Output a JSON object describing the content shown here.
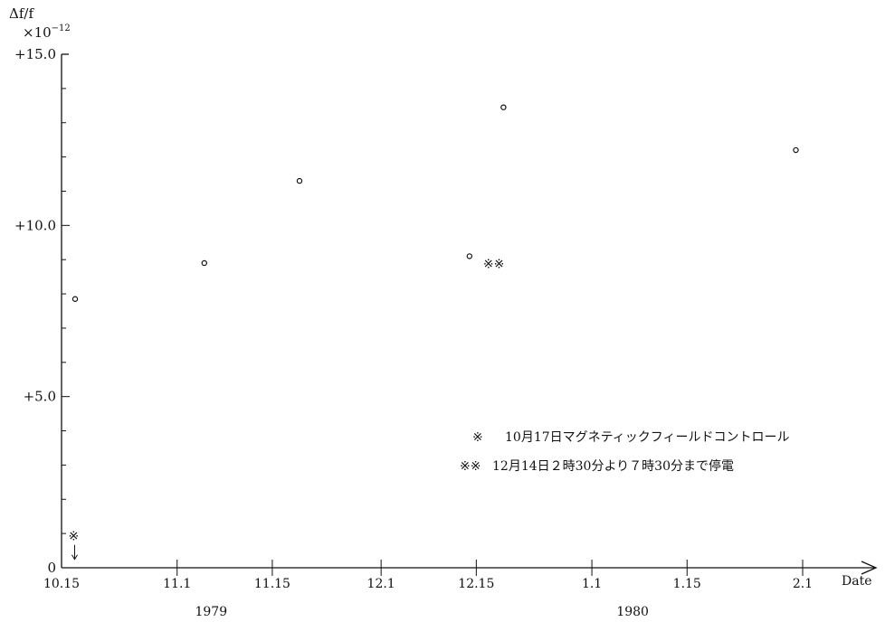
{
  "chart_data": {
    "type": "scatter",
    "ylabel": "Δf/f",
    "ylabel_multiplier": "×10",
    "ylabel_exponent": "−12",
    "xlabel": "Date",
    "ylim": [
      0,
      15
    ],
    "y_ticks_major": [
      "0",
      "+5.0",
      "+10.0",
      "+15.0"
    ],
    "x_ticks": [
      "10.15",
      "11.1",
      "11.15",
      "12.1",
      "12.15",
      "1.1",
      "1.15",
      "2.1"
    ],
    "x_tick_days": [
      0,
      17,
      31,
      47,
      61,
      78,
      92,
      109
    ],
    "years": [
      {
        "label": "1979",
        "day": 22
      },
      {
        "label": "1980",
        "day": 84
      }
    ],
    "points": [
      {
        "x": "10.17",
        "day": 2,
        "y": 7.85
      },
      {
        "x": "11.5",
        "day": 21,
        "y": 8.9
      },
      {
        "x": "11.19",
        "day": 35,
        "y": 11.3
      },
      {
        "x": "12.14",
        "day": 60,
        "y": 9.1
      },
      {
        "x": "12.19",
        "day": 65,
        "y": 13.45
      },
      {
        "x": "1.31",
        "day": 108,
        "y": 12.2
      }
    ],
    "markers": [
      {
        "symbol": "※",
        "day": 1,
        "y": 0.8,
        "arrow": true
      },
      {
        "symbol": "※※",
        "day": 62,
        "y": 8.75,
        "arrow": false
      }
    ],
    "legend_placement": "bottom-right",
    "annotations": [
      {
        "symbol": "※",
        "text": "10月17日マグネティックフィールドコントロール"
      },
      {
        "symbol": "※※",
        "text": "12月14日２時30分より７時30分まで停電"
      }
    ],
    "grid": false
  }
}
